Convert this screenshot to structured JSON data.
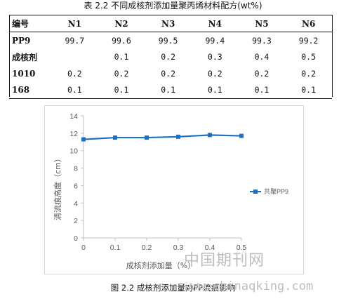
{
  "table": {
    "caption": "表 2.2 不同成核剂添加量聚丙烯材料配方(wt%)",
    "corner": "编号",
    "columns": [
      "N1",
      "N2",
      "N3",
      "N4",
      "N5",
      "N6"
    ],
    "rows": [
      {
        "label": "PP9",
        "values": [
          "99.7",
          "99.6",
          "99.5",
          "99.4",
          "99.3",
          "99.2"
        ]
      },
      {
        "label": "成核剂",
        "values": [
          "",
          "0.1",
          "0.2",
          "0.3",
          "0.4",
          "0.5"
        ]
      },
      {
        "label": "1010",
        "values": [
          "0.2",
          "0.2",
          "0.2",
          "0.2",
          "0.2",
          "0.2"
        ]
      },
      {
        "label": "168",
        "values": [
          "0.1",
          "0.1",
          "0.1",
          "0.1",
          "0.1",
          "0.1"
        ]
      }
    ]
  },
  "chart_data": {
    "type": "line",
    "x": [
      0,
      0.1,
      0.2,
      0.3,
      0.4,
      0.5
    ],
    "x_tick_labels": [
      "0",
      "0.1",
      "0.2",
      "0.3",
      "0.4",
      "0.5"
    ],
    "series": [
      {
        "name": "共聚PP9",
        "values": [
          11.3,
          11.5,
          11.5,
          11.6,
          11.8,
          11.7
        ]
      }
    ],
    "xlabel": "成核剂添加量（%）",
    "ylabel": "清流痕高度（cm）",
    "xlim": [
      0,
      0.5
    ],
    "ylim": [
      0,
      14
    ],
    "y_ticks": [
      0,
      2,
      4,
      6,
      8,
      10,
      12,
      14
    ],
    "grid": false,
    "legend_position": "right",
    "series_color": "#1f6fc5"
  },
  "figure": {
    "caption": "图 2.2 成核剂添加量对PP流痕影响"
  },
  "watermark": {
    "site_cn": "中国期刊网",
    "url": "www.chinaqking.com"
  }
}
